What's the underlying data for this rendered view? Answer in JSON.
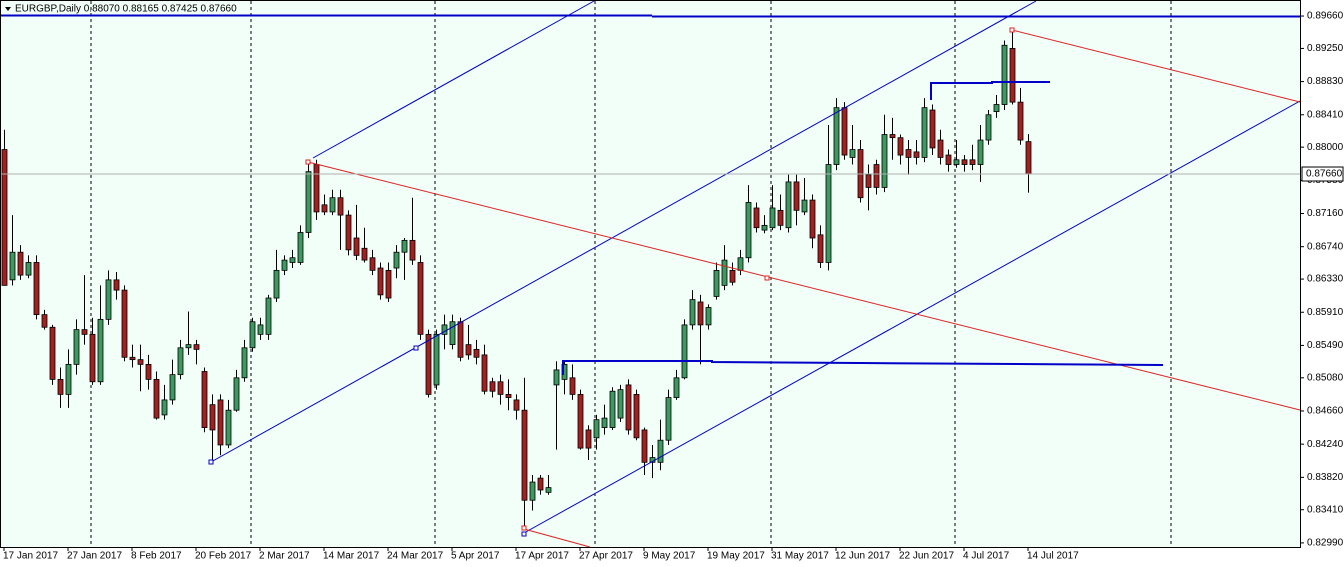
{
  "chart_data": {
    "type": "candlestick",
    "title": "EURGBP,Daily 0.88070 0.88165 0.87425 0.87660",
    "categories": [
      "17 Jan 2017",
      null,
      null,
      null,
      null,
      null,
      null,
      null,
      "27 Jan 2017",
      null,
      null,
      null,
      null,
      null,
      null,
      null,
      "8 Feb 2017",
      null,
      null,
      null,
      null,
      null,
      null,
      null,
      "20 Feb 2017",
      null,
      null,
      null,
      null,
      null,
      null,
      null,
      "2 Mar 2017",
      null,
      null,
      null,
      null,
      null,
      null,
      null,
      "14 Mar 2017",
      null,
      null,
      null,
      null,
      null,
      null,
      null,
      "24 Mar 2017",
      null,
      null,
      null,
      null,
      null,
      null,
      null,
      "5 Apr 2017",
      null,
      null,
      null,
      null,
      null,
      null,
      null,
      "17 Apr 2017",
      null,
      null,
      null,
      null,
      null,
      null,
      null,
      "27 Apr 2017",
      null,
      null,
      null,
      null,
      null,
      null,
      null,
      "9 May 2017",
      null,
      null,
      null,
      null,
      null,
      null,
      null,
      "19 May 2017",
      null,
      null,
      null,
      null,
      null,
      null,
      null,
      "31 May 2017",
      null,
      null,
      null,
      null,
      null,
      null,
      null,
      "12 Jun 2017",
      null,
      null,
      null,
      null,
      null,
      null,
      null,
      "22 Jun 2017",
      null,
      null,
      null,
      null,
      null,
      null,
      null,
      "4 Jul 2017",
      null,
      null,
      null,
      null,
      null,
      null,
      null,
      "14 Jul 2017"
    ],
    "open": [
      0.8797,
      0.8632,
      0.8667,
      0.8638,
      0.8654,
      0.8588,
      0.8572,
      0.8506,
      0.8487,
      0.8525,
      0.8569,
      0.8563,
      0.8503,
      0.8582,
      0.8632,
      0.8619,
      0.8534,
      0.8531,
      0.8525,
      0.8506,
      0.8461,
      0.848,
      0.8512,
      0.8546,
      0.855,
      0.8516,
      0.8474,
      0.848,
      0.8423,
      0.8467,
      0.8508,
      0.8546,
      0.8563,
      0.8563,
      0.8609,
      0.8644,
      0.8654,
      0.8654,
      0.8692,
      0.8778,
      0.8727,
      0.8718,
      0.8736,
      0.8714,
      0.8685,
      0.8672,
      0.866,
      0.8647,
      0.8644,
      0.8647,
      0.8667,
      0.8682,
      0.8654,
      0.8563,
      0.8499,
      0.8563,
      0.855,
      0.8579,
      0.855,
      0.8544,
      0.8537,
      0.8503,
      0.8503,
      0.8487,
      0.848,
      0.8467,
      0.8353,
      0.8381,
      0.8363,
      0.8499,
      0.8506,
      0.8508,
      0.8487,
      0.8442,
      0.8432,
      0.8445,
      0.8445,
      0.8457,
      0.8499,
      0.8487,
      0.8442,
      0.8401,
      0.8401,
      0.8429,
      0.8483,
      0.8508,
      0.8575,
      0.8604,
      0.8575,
      0.8611,
      0.8625,
      0.8644,
      0.8644,
      0.866,
      0.8723,
      0.8695,
      0.8698,
      0.872,
      0.8698,
      0.8756,
      0.8718,
      0.8733,
      0.8689,
      0.8654,
      0.8778,
      0.885,
      0.8787,
      0.8797,
      0.8765,
      0.8778,
      0.8749,
      0.8816,
      0.8812,
      0.8797,
      0.8794,
      0.8787,
      0.8847,
      0.8809,
      0.879,
      0.8778,
      0.8784,
      0.8784,
      0.8778,
      0.8809,
      0.8845,
      0.8854,
      0.8925,
      0.8857,
      0.8807
    ],
    "high": [
      0.8822,
      0.8714,
      0.8676,
      0.8663,
      0.8663,
      0.8594,
      0.8575,
      0.8521,
      0.8544,
      0.8582,
      0.8638,
      0.8584,
      0.8625,
      0.8644,
      0.8642,
      0.8625,
      0.855,
      0.855,
      0.8537,
      0.8516,
      0.8499,
      0.8531,
      0.8556,
      0.8592,
      0.8556,
      0.8521,
      0.8487,
      0.8487,
      0.848,
      0.8518,
      0.8556,
      0.8584,
      0.8584,
      0.8613,
      0.867,
      0.8663,
      0.867,
      0.8701,
      0.8784,
      0.8784,
      0.874,
      0.8746,
      0.8746,
      0.872,
      0.8727,
      0.8698,
      0.867,
      0.8654,
      0.8654,
      0.8676,
      0.8685,
      0.8736,
      0.8663,
      0.8569,
      0.8569,
      0.8588,
      0.8588,
      0.8584,
      0.8575,
      0.8556,
      0.855,
      0.8508,
      0.8512,
      0.8506,
      0.8487,
      0.8508,
      0.8385,
      0.8385,
      0.8385,
      0.8529,
      0.8529,
      0.8525,
      0.8493,
      0.8448,
      0.8461,
      0.8474,
      0.8496,
      0.8499,
      0.8506,
      0.8493,
      0.8445,
      0.8423,
      0.8455,
      0.8493,
      0.8518,
      0.8582,
      0.8619,
      0.8613,
      0.8601,
      0.8654,
      0.8676,
      0.8654,
      0.867,
      0.8752,
      0.873,
      0.8714,
      0.8752,
      0.874,
      0.8765,
      0.8765,
      0.8761,
      0.874,
      0.8701,
      0.8828,
      0.8862,
      0.8857,
      0.8828,
      0.8809,
      0.8778,
      0.8784,
      0.8841,
      0.8837,
      0.8816,
      0.8809,
      0.8809,
      0.8862,
      0.8854,
      0.8822,
      0.8797,
      0.8809,
      0.879,
      0.8803,
      0.8828,
      0.8847,
      0.8866,
      0.8935,
      0.8948,
      0.8875,
      0.88165
    ],
    "low": [
      0.8625,
      0.8625,
      0.8632,
      0.8634,
      0.8582,
      0.8569,
      0.8499,
      0.847,
      0.847,
      0.8512,
      0.855,
      0.8499,
      0.8499,
      0.8575,
      0.8607,
      0.8529,
      0.8521,
      0.8491,
      0.8493,
      0.8455,
      0.8455,
      0.8474,
      0.8506,
      0.8537,
      0.8525,
      0.8439,
      0.8401,
      0.841,
      0.8419,
      0.8465,
      0.8503,
      0.8541,
      0.8556,
      0.8556,
      0.8604,
      0.8638,
      0.8647,
      0.8651,
      0.8685,
      0.8708,
      0.8714,
      0.8714,
      0.867,
      0.8663,
      0.8657,
      0.8654,
      0.8638,
      0.8607,
      0.8604,
      0.8634,
      0.8632,
      0.8651,
      0.8556,
      0.8483,
      0.8493,
      0.8544,
      0.8544,
      0.8529,
      0.8531,
      0.8525,
      0.8487,
      0.8483,
      0.8474,
      0.8467,
      0.8455,
      0.8315,
      0.834,
      0.836,
      0.836,
      0.8417,
      0.8487,
      0.848,
      0.8417,
      0.8404,
      0.8417,
      0.8436,
      0.8442,
      0.8452,
      0.8436,
      0.8429,
      0.8385,
      0.8381,
      0.8391,
      0.8423,
      0.848,
      0.8506,
      0.8569,
      0.8525,
      0.8569,
      0.8607,
      0.8619,
      0.8625,
      0.8638,
      0.8654,
      0.8692,
      0.8691,
      0.8695,
      0.8695,
      0.8692,
      0.8701,
      0.8714,
      0.8672,
      0.8647,
      0.8644,
      0.8771,
      0.8784,
      0.8778,
      0.873,
      0.872,
      0.874,
      0.8743,
      0.8784,
      0.8778,
      0.8765,
      0.8778,
      0.8781,
      0.879,
      0.8778,
      0.8769,
      0.8774,
      0.8769,
      0.8771,
      0.8756,
      0.8803,
      0.8837,
      0.8847,
      0.8854,
      0.8803,
      0.87425
    ],
    "close": [
      0.8625,
      0.8667,
      0.8638,
      0.8654,
      0.8588,
      0.8572,
      0.8506,
      0.8487,
      0.8525,
      0.8569,
      0.8563,
      0.8503,
      0.8582,
      0.8632,
      0.8619,
      0.8534,
      0.8531,
      0.8525,
      0.8506,
      0.8457,
      0.848,
      0.8512,
      0.8546,
      0.855,
      0.8544,
      0.8445,
      0.8442,
      0.8423,
      0.8467,
      0.8508,
      0.8546,
      0.8579,
      0.8575,
      0.8609,
      0.8644,
      0.8657,
      0.866,
      0.8692,
      0.8769,
      0.8718,
      0.8718,
      0.8736,
      0.8714,
      0.867,
      0.8663,
      0.8657,
      0.8644,
      0.8613,
      0.8609,
      0.8667,
      0.8682,
      0.8657,
      0.8563,
      0.8487,
      0.8563,
      0.8575,
      0.8579,
      0.8534,
      0.8537,
      0.8534,
      0.8491,
      0.8491,
      0.8487,
      0.8483,
      0.8467,
      0.8353,
      0.8376,
      0.8366,
      0.8369,
      0.8518,
      0.8525,
      0.8487,
      0.8419,
      0.8419,
      0.8455,
      0.8457,
      0.8491,
      0.8493,
      0.8442,
      0.8432,
      0.8401,
      0.8407,
      0.8429,
      0.8483,
      0.8508,
      0.8575,
      0.8607,
      0.8575,
      0.8597,
      0.8644,
      0.8657,
      0.8629,
      0.866,
      0.873,
      0.8698,
      0.8701,
      0.8723,
      0.8701,
      0.8756,
      0.872,
      0.8733,
      0.8685,
      0.8654,
      0.8778,
      0.885,
      0.879,
      0.8797,
      0.8736,
      0.8749,
      0.8749,
      0.8816,
      0.8812,
      0.879,
      0.8787,
      0.8787,
      0.885,
      0.8799,
      0.8787,
      0.8778,
      0.8784,
      0.8778,
      0.8778,
      0.8809,
      0.8841,
      0.8854,
      0.8929,
      0.8857,
      0.8809,
      0.8766
    ],
    "up_color": "#3c9a5f",
    "down_color": "#a32020",
    "ylim": [
      0.82938,
      0.89863
    ],
    "yticks": [
      {
        "value": 0.8966,
        "label": "0.89660"
      },
      {
        "value": 0.8925,
        "label": "0.89250"
      },
      {
        "value": 0.8883,
        "label": "0.88830"
      },
      {
        "value": 0.8841,
        "label": "0.88410"
      },
      {
        "value": 0.88,
        "label": "0.88000"
      },
      {
        "value": 0.8758,
        "label": "0.87580"
      },
      {
        "value": 0.8716,
        "label": "0.87160"
      },
      {
        "value": 0.8674,
        "label": "0.86740"
      },
      {
        "value": 0.8633,
        "label": "0.86330"
      },
      {
        "value": 0.8591,
        "label": "0.85910"
      },
      {
        "value": 0.8549,
        "label": "0.85490"
      },
      {
        "value": 0.8508,
        "label": "0.85080"
      },
      {
        "value": 0.8466,
        "label": "0.84660"
      },
      {
        "value": 0.8424,
        "label": "0.84240"
      },
      {
        "value": 0.8382,
        "label": "0.83820"
      },
      {
        "value": 0.8341,
        "label": "0.83410"
      },
      {
        "value": 0.8299,
        "label": "0.82990"
      }
    ],
    "current_price": {
      "value": 0.8766,
      "label": "0.87660"
    }
  }
}
